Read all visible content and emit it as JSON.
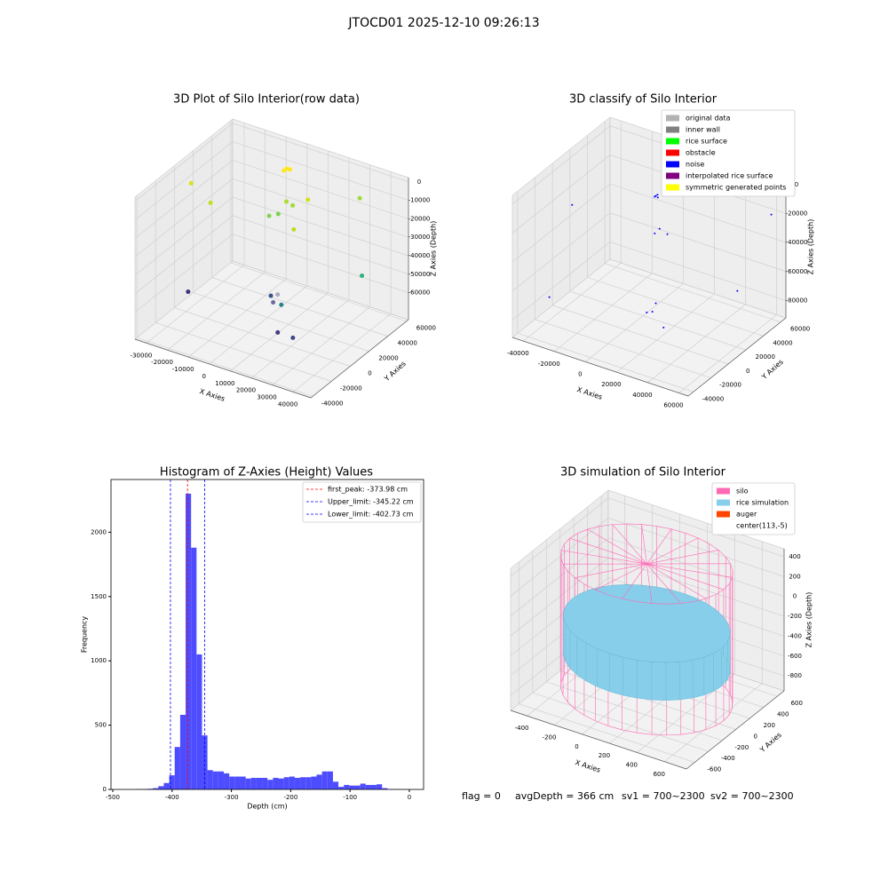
{
  "title": "JTOCD01 2025-12-10 09:26:13",
  "chart_data": [
    {
      "type": "scatter3d",
      "title": "3D Plot of Silo Interior(row data)",
      "xlabel": "X Axies",
      "ylabel": "Y Axies",
      "zlabel": "Z Axies (Depth)",
      "xlim": [
        -35500,
        48400
      ],
      "ylim": [
        -42000,
        62000
      ],
      "zlim": [
        -74600,
        2300
      ],
      "xticks": [
        -30000,
        -20000,
        -10000,
        0,
        10000,
        20000,
        30000,
        40000
      ],
      "yticks": [
        -40000,
        -20000,
        0,
        20000,
        40000,
        60000
      ],
      "zticks": [
        -60000,
        -50000,
        -40000,
        -30000,
        -20000,
        -10000,
        0
      ],
      "x": [
        -32000,
        -25000,
        -2000,
        -1000,
        -3000,
        0,
        3000,
        8000,
        -6000,
        -3000,
        8000,
        35000,
        45000,
        15000,
        17000,
        20000,
        -20000,
        25000,
        30000,
        16000
      ],
      "y": [
        10000,
        15000,
        45000,
        46000,
        44000,
        40000,
        40000,
        45000,
        35000,
        38000,
        30000,
        40000,
        20000,
        -10000,
        -12000,
        -10000,
        -20000,
        -25000,
        -20000,
        -5000
      ],
      "z": [
        -10000,
        -20000,
        -5000,
        -5500,
        -6000,
        -20000,
        -21000,
        -18000,
        -28000,
        -27000,
        -28000,
        -5000,
        -35000,
        -45000,
        -47000,
        -48000,
        -52000,
        -55000,
        -58000,
        -46000
      ],
      "colors": [
        "#dde318",
        "#c2df23",
        "#fde725",
        "#fde725",
        "#fde725",
        "#addc30",
        "#a2da37",
        "#d0e11c",
        "#84d44b",
        "#7ad151",
        "#bade28",
        "#a0da39",
        "#2db27d",
        "#3b528b",
        "#6b6b9f",
        "#26828e",
        "#46327e",
        "#433e85",
        "#3e4989",
        "#a9a9c0"
      ]
    },
    {
      "type": "scatter3d",
      "title": "3D classify of Silo Interior",
      "xlabel": "X Axies",
      "ylabel": "Y Axies",
      "zlabel": "Z Axies (Depth)",
      "xlim": [
        -47000,
        66000
      ],
      "ylim": [
        -46000,
        66000
      ],
      "zlim": [
        -92000,
        6000
      ],
      "xticks": [
        -40000,
        -20000,
        0,
        20000,
        40000,
        60000
      ],
      "yticks": [
        -40000,
        -20000,
        0,
        20000,
        40000,
        60000
      ],
      "zticks": [
        -80000,
        -60000,
        -40000,
        -20000,
        0
      ],
      "x": [
        -3000,
        -2500,
        -3500,
        -2000,
        -40000,
        5000,
        3000,
        10000,
        20000,
        30000,
        55000,
        25000,
        -35000,
        22000,
        60000
      ],
      "y": [
        40000,
        41000,
        39500,
        40500,
        10000,
        30000,
        28000,
        30000,
        -5000,
        -10000,
        30000,
        -10000,
        -25000,
        -15000,
        60000
      ],
      "z": [
        -20000,
        -19500,
        -20500,
        -21000,
        -25000,
        -35000,
        -38000,
        -37000,
        -70000,
        -75000,
        -60000,
        -60000,
        -70000,
        -65000,
        -20000
      ],
      "color": "#0000ff",
      "legend": [
        {
          "label": "original data",
          "color": "#b3b3b3"
        },
        {
          "label": "inner wall",
          "color": "#808080"
        },
        {
          "label": "rice surface",
          "color": "#00ff00"
        },
        {
          "label": "obstacle",
          "color": "#ff0000"
        },
        {
          "label": "noise",
          "color": "#0000ff"
        },
        {
          "label": "interpolated rice surface",
          "color": "#800080"
        },
        {
          "label": "symmetric generated points",
          "color": "#ffff00"
        }
      ]
    },
    {
      "type": "histogram",
      "title": "Histogram of Z-Axies (Height) Values",
      "xlabel": "Depth (cm)",
      "ylabel": "Frequency",
      "color": "#4d4dff",
      "xlim": [
        -503,
        24
      ],
      "ylim": [
        0,
        2410
      ],
      "xticks": [
        -500,
        -400,
        -300,
        -200,
        -100,
        0
      ],
      "yticks": [
        0,
        500,
        1000,
        1500,
        2000
      ],
      "bins": [
        -460,
        -450.8,
        -441.6,
        -432.4,
        -423.2,
        -414,
        -404.8,
        -395.6,
        -386.4,
        -377.2,
        -368,
        -358.8,
        -349.6,
        -340.4,
        -331.2,
        -322,
        -312.8,
        -303.6,
        -294.4,
        -285.2,
        -276,
        -266.8,
        -257.6,
        -248.4,
        -239.2,
        -230,
        -220.8,
        -211.6,
        -202.4,
        -193.2,
        -184,
        -174.8,
        -165.6,
        -156.4,
        -147.2,
        -138,
        -128.8,
        -119.6,
        -110.4,
        -101.2,
        -92,
        -82.8,
        -73.6,
        -64.4,
        -55.2,
        -46,
        -36.8,
        -27.6,
        -18.4,
        -9.2,
        0
      ],
      "counts": [
        2,
        3,
        5,
        10,
        25,
        50,
        110,
        330,
        580,
        2300,
        1880,
        1050,
        420,
        150,
        140,
        140,
        125,
        100,
        100,
        100,
        85,
        90,
        90,
        90,
        75,
        90,
        85,
        95,
        100,
        90,
        95,
        95,
        100,
        115,
        140,
        140,
        60,
        20,
        35,
        30,
        30,
        45,
        35,
        35,
        40,
        10,
        3,
        2,
        1,
        1
      ],
      "lines": [
        {
          "label": "first_peak: -373.98 cm",
          "value": -373.98,
          "color": "#ff0000"
        },
        {
          "label": "Upper_limit: -345.22 cm",
          "value": -345.22,
          "color": "#0000ff"
        },
        {
          "label": "Lower_limit: -402.73 cm",
          "value": -402.73,
          "color": "#0000ff"
        }
      ]
    },
    {
      "type": "silo3d",
      "title": "3D simulation of Silo Interior",
      "xlabel": "X Axies",
      "ylabel": "Y Axies",
      "zlabel": "Z Axies (Depth)",
      "xlim": [
        -520,
        760
      ],
      "ylim": [
        -720,
        700
      ],
      "zlim": [
        -950,
        480
      ],
      "xticks": [
        -400,
        -200,
        0,
        200,
        400,
        600
      ],
      "yticks": [
        -600,
        -400,
        -200,
        0,
        200,
        400,
        600
      ],
      "zticks": [
        -800,
        -600,
        -400,
        -200,
        0,
        200,
        400
      ],
      "silo": {
        "center": [
          113,
          -5
        ],
        "radius": 560,
        "zrange": [
          -900,
          420
        ],
        "color": "#ff69b4"
      },
      "rice": {
        "zrange": [
          -560,
          -180
        ],
        "color": "#87ceeb"
      },
      "legend": [
        {
          "label": "silo",
          "color": "#ff69b4"
        },
        {
          "label": "rice simulation",
          "color": "#87ceeb"
        },
        {
          "label": "auger",
          "color": "#ff4500"
        },
        {
          "label": "center(113,-5)"
        }
      ]
    }
  ],
  "footer": [
    "flag = 0",
    "avgDepth = 366 cm",
    "sv1 = 700~2300",
    "sv2 = 700~2300"
  ]
}
